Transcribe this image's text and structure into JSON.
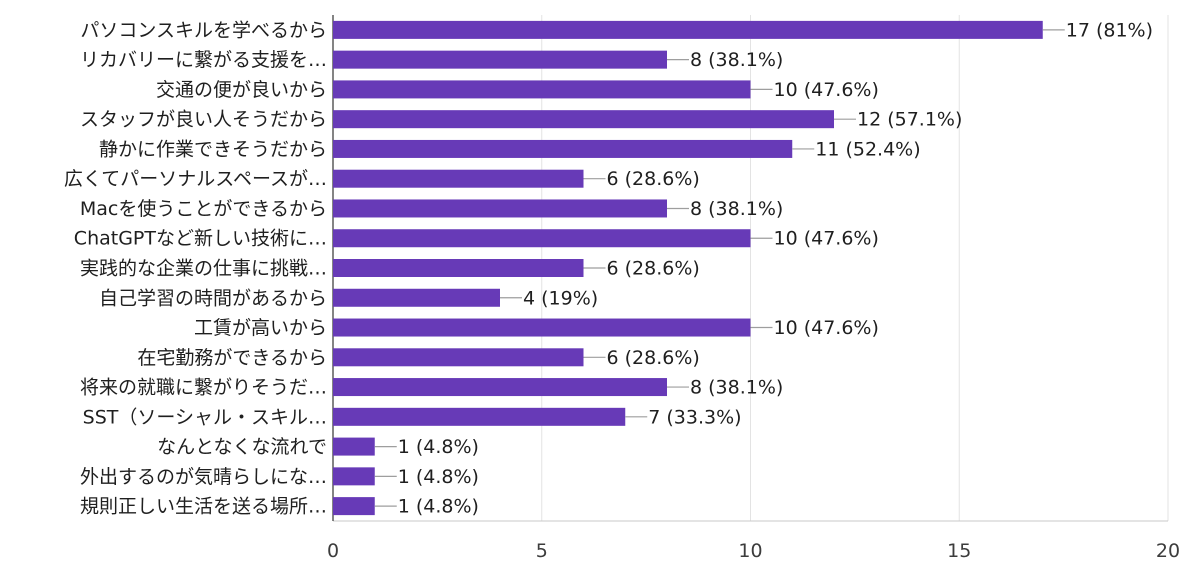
{
  "chart_data": {
    "type": "bar",
    "orientation": "horizontal",
    "categories": [
      "パソコンスキルを学べるから",
      "リカバリーに繋がる支援を…",
      "交通の便が良いから",
      "スタッフが良い人そうだから",
      "静かに作業できそうだから",
      "広くてパーソナルスペースが…",
      "Macを使うことができるから",
      "ChatGPTなど新しい技術に…",
      "実践的な企業の仕事に挑戦…",
      "自己学習の時間があるから",
      "工賃が高いから",
      "在宅勤務ができるから",
      "将来の就職に繋がりそうだ…",
      "SST（ソーシャル・スキル…",
      "なんとなくな流れで",
      "外出するのが気晴らしにな…",
      "規則正しい生活を送る場所…"
    ],
    "values": [
      17,
      8,
      10,
      12,
      11,
      6,
      8,
      10,
      6,
      4,
      10,
      6,
      8,
      7,
      1,
      1,
      1
    ],
    "value_labels": [
      "17 (81%)",
      "8 (38.1%)",
      "10 (47.6%)",
      "12 (57.1%)",
      "11 (52.4%)",
      "6 (28.6%)",
      "8 (38.1%)",
      "10 (47.6%)",
      "6 (28.6%)",
      "4 (19%)",
      "10 (47.6%)",
      "6 (28.6%)",
      "8 (38.1%)",
      "7 (33.3%)",
      "1 (4.8%)",
      "1 (4.8%)",
      "1 (4.8%)"
    ],
    "xlim": [
      0,
      20
    ],
    "x_ticks": [
      "0",
      "5",
      "10",
      "15",
      "20"
    ],
    "grid": true,
    "bar_color": "#673ab7"
  }
}
